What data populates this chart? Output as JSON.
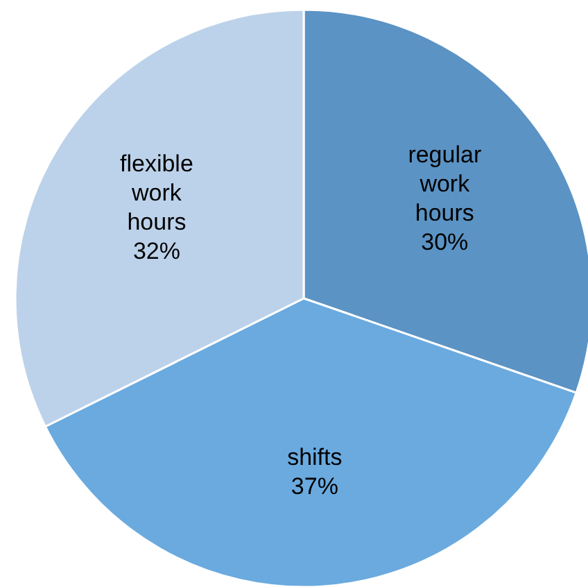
{
  "chart_data": {
    "type": "pie",
    "categories": [
      "regular work hours",
      "shifts",
      "flexible work hours"
    ],
    "values": [
      30,
      37,
      32
    ],
    "colors": [
      "#5b93c4",
      "#6aaadf",
      "#bcd2ea"
    ],
    "value_labels": [
      "30%",
      "37%",
      "32%"
    ]
  }
}
